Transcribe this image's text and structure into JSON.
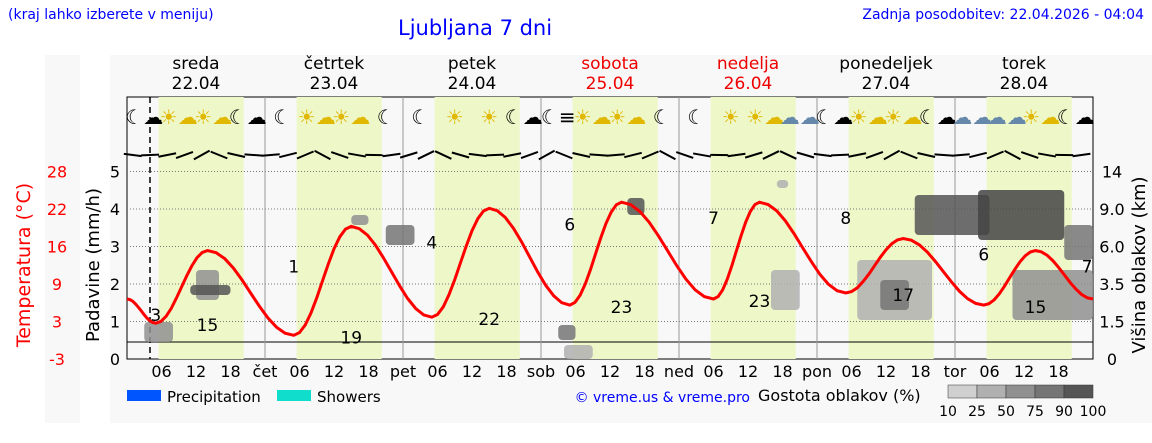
{
  "header": {
    "hint": "(kraj lahko izberete v meniju)",
    "title": "Ljubljana 7 dni",
    "updated": "Zadnja posodobitev: 22.04.2026 - 04:04"
  },
  "days": [
    {
      "name": "sreda",
      "date": "22.04",
      "weekend": false,
      "short": ""
    },
    {
      "name": "četrtek",
      "date": "23.04",
      "weekend": false,
      "short": "čet"
    },
    {
      "name": "petek",
      "date": "24.04",
      "weekend": false,
      "short": "pet"
    },
    {
      "name": "sobota",
      "date": "25.04",
      "weekend": true,
      "short": "sob"
    },
    {
      "name": "nedelja",
      "date": "26.04",
      "weekend": true,
      "short": "ned"
    },
    {
      "name": "ponedeljek",
      "date": "27.04",
      "weekend": false,
      "short": "pon"
    },
    {
      "name": "torek",
      "date": "28.04",
      "weekend": false,
      "short": "tor"
    }
  ],
  "hour_ticks": [
    "06",
    "12",
    "18"
  ],
  "icons": [
    [
      "moon-cloud",
      "sun-cloud",
      "sun-cloud",
      "moon-cloud"
    ],
    [
      "moon",
      "sun-cloud",
      "sun-cloud",
      "moon"
    ],
    [
      "moon",
      "sun",
      "sun",
      "moon-cloud"
    ],
    [
      "moon-fog",
      "sun-cloud",
      "sun-cloud",
      "moon"
    ],
    [
      "moon",
      "sun",
      "sun-cloud",
      "cloud"
    ],
    [
      "moon-cloud",
      "sun-cloud",
      "sun-cloud",
      "moon-cloud"
    ],
    [
      "cloud",
      "cloud",
      "sun-cloud",
      "moon-cloud"
    ]
  ],
  "legend": {
    "precipitation": "Precipitation",
    "showers": "Showers",
    "precip_color": "#0055ff",
    "showers_color": "#11ddcc",
    "copyright": "© vreme.us & vreme.pro",
    "cloud_title": "Gostota oblakov (%)",
    "cloud_levels": [
      "10",
      "25",
      "50",
      "75",
      "90",
      "100"
    ],
    "cloud_colors": [
      "#d0d0d0",
      "#b0b0b0",
      "#909090",
      "#757575",
      "#555555"
    ]
  },
  "chart_data": {
    "type": "line",
    "ylabel_left": "Padavine (mm/h)",
    "ylabel_temp": "Temperatura (°C)",
    "ylabel_right": "Višina oblakov (km)",
    "precip_ticks": [
      "0",
      "1",
      "2",
      "3",
      "4",
      "5"
    ],
    "temp_ticks": [
      "-3",
      "3",
      "9",
      "16",
      "22",
      "28"
    ],
    "cloud_ticks": [
      "0",
      "1.5",
      "3.5",
      "6.0",
      "9.0",
      "14"
    ],
    "ylim_precip": [
      0,
      5
    ],
    "temperature": {
      "color": "#ff0000",
      "points": [
        [
          0,
          7
        ],
        [
          5,
          3
        ],
        [
          14,
          15
        ],
        [
          29,
          1
        ],
        [
          39,
          19
        ],
        [
          53,
          4
        ],
        [
          63,
          22
        ],
        [
          77,
          6
        ],
        [
          86,
          23
        ],
        [
          102,
          7
        ],
        [
          110,
          23
        ],
        [
          125,
          8
        ],
        [
          135,
          17
        ],
        [
          149,
          6
        ],
        [
          158,
          15
        ],
        [
          168,
          7
        ]
      ],
      "labels": [
        [
          5,
          "3"
        ],
        [
          14,
          "15"
        ],
        [
          29,
          "1"
        ],
        [
          39,
          "19"
        ],
        [
          53,
          "4"
        ],
        [
          63,
          "22"
        ],
        [
          77,
          "6"
        ],
        [
          86,
          "23"
        ],
        [
          102,
          "7"
        ],
        [
          110,
          "23"
        ],
        [
          125,
          "8"
        ],
        [
          135,
          "17"
        ],
        [
          149,
          "6"
        ],
        [
          158,
          "15"
        ],
        [
          168,
          "7"
        ]
      ]
    },
    "precipitation": [],
    "current_hour": 4,
    "daylight": [
      5.5,
      20.3
    ]
  }
}
